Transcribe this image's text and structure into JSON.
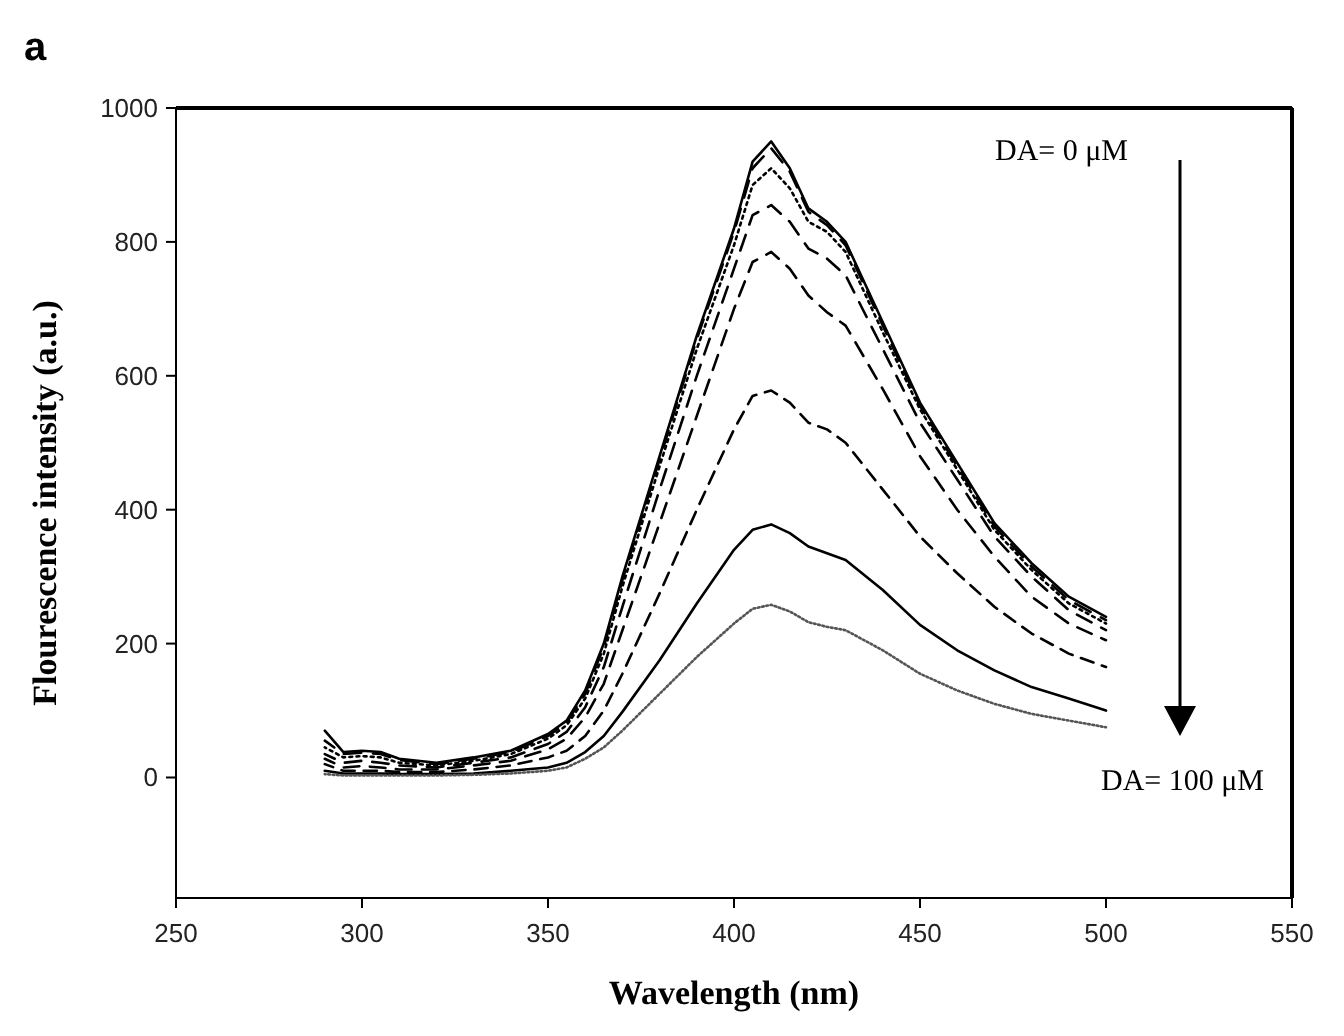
{
  "chart_data": {
    "type": "line",
    "title": "a",
    "xlabel": "Wavelength (nm)",
    "ylabel": "Flourescence intensity (a.u.)",
    "x": [
      290,
      295,
      300,
      305,
      310,
      320,
      330,
      340,
      350,
      355,
      360,
      365,
      370,
      380,
      390,
      400,
      405,
      410,
      415,
      420,
      425,
      430,
      440,
      450,
      460,
      470,
      480,
      490,
      500
    ],
    "xlim": [
      250,
      550
    ],
    "xticks": [
      250,
      300,
      350,
      400,
      450,
      500,
      550
    ],
    "ylim": [
      -180,
      1000
    ],
    "yticks": [
      0,
      200,
      400,
      600,
      800,
      1000
    ],
    "grid": false,
    "series": [
      {
        "color": "#000000",
        "line_style": "solid",
        "values": [
          70,
          38,
          40,
          38,
          28,
          22,
          30,
          40,
          65,
          85,
          130,
          200,
          300,
          480,
          660,
          820,
          920,
          950,
          910,
          850,
          830,
          800,
          680,
          560,
          470,
          380,
          320,
          270,
          240
        ]
      },
      {
        "color": "#000000",
        "line_style": "dashed",
        "values": [
          55,
          35,
          37,
          35,
          26,
          20,
          28,
          38,
          62,
          82,
          125,
          195,
          295,
          475,
          655,
          815,
          910,
          940,
          905,
          845,
          825,
          795,
          675,
          555,
          465,
          375,
          315,
          265,
          235
        ]
      },
      {
        "color": "#000000",
        "line_style": "dotted",
        "values": [
          45,
          30,
          32,
          30,
          22,
          18,
          25,
          35,
          58,
          78,
          118,
          185,
          285,
          465,
          640,
          795,
          885,
          910,
          880,
          830,
          815,
          785,
          665,
          550,
          460,
          370,
          310,
          260,
          230
        ]
      },
      {
        "color": "#000000",
        "line_style": "dashed",
        "values": [
          35,
          22,
          25,
          22,
          18,
          15,
          22,
          30,
          50,
          68,
          105,
          165,
          255,
          430,
          600,
          760,
          840,
          855,
          830,
          790,
          775,
          750,
          640,
          530,
          445,
          360,
          300,
          250,
          220
        ]
      },
      {
        "color": "#000000",
        "line_style": "dashed",
        "values": [
          28,
          15,
          17,
          15,
          12,
          12,
          18,
          25,
          42,
          58,
          90,
          140,
          220,
          380,
          540,
          700,
          770,
          785,
          760,
          720,
          695,
          675,
          580,
          480,
          400,
          330,
          270,
          230,
          205
        ]
      },
      {
        "color": "#000000",
        "line_style": "dashed",
        "values": [
          20,
          10,
          10,
          10,
          8,
          8,
          12,
          18,
          30,
          40,
          62,
          100,
          155,
          275,
          400,
          520,
          570,
          578,
          560,
          530,
          520,
          500,
          430,
          360,
          305,
          255,
          215,
          185,
          165
        ]
      },
      {
        "color": "#000000",
        "line_style": "solid",
        "values": [
          10,
          6,
          6,
          6,
          5,
          5,
          6,
          10,
          15,
          22,
          38,
          62,
          98,
          175,
          260,
          340,
          370,
          378,
          365,
          345,
          335,
          325,
          280,
          228,
          190,
          160,
          135,
          118,
          100
        ]
      },
      {
        "color": "#555555",
        "line_style": "dotted",
        "values": [
          5,
          3,
          3,
          3,
          3,
          3,
          4,
          6,
          10,
          15,
          28,
          45,
          70,
          125,
          180,
          230,
          252,
          258,
          248,
          232,
          225,
          220,
          190,
          155,
          130,
          110,
          95,
          85,
          75
        ]
      }
    ],
    "annotations": [
      "DA= 0 μM",
      "DA= 100 μM"
    ]
  }
}
